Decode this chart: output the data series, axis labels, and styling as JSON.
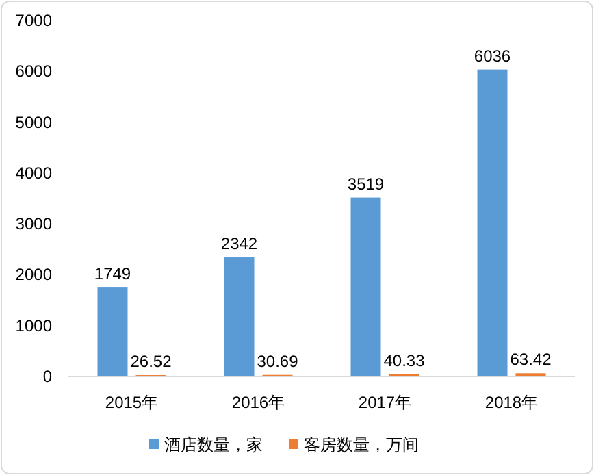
{
  "chart_data": {
    "type": "bar",
    "categories": [
      "2015年",
      "2016年",
      "2017年",
      "2018年"
    ],
    "series": [
      {
        "name": "酒店数量，家",
        "color": "#5b9bd5",
        "values": [
          1749,
          2342,
          3519,
          6036
        ]
      },
      {
        "name": "客房数量，万间",
        "color": "#ed7d31",
        "values": [
          26.52,
          30.69,
          40.33,
          63.42
        ]
      }
    ],
    "ylim": [
      0,
      7000
    ],
    "yticks": [
      0,
      1000,
      2000,
      3000,
      4000,
      5000,
      6000,
      7000
    ],
    "data_labels": true,
    "legend": "bottom",
    "grid": false
  }
}
